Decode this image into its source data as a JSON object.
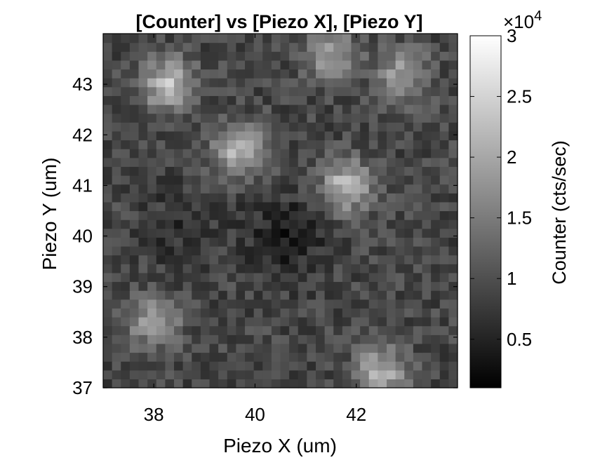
{
  "chart_data": {
    "type": "heatmap",
    "title": "[Counter] vs [Piezo X], [Piezo Y]",
    "xlabel": "Piezo X (um)",
    "ylabel": "Piezo Y (um)",
    "xlim": [
      37,
      44
    ],
    "ylim": [
      37,
      44
    ],
    "xticks": [
      38,
      40,
      42
    ],
    "yticks": [
      37,
      38,
      39,
      40,
      41,
      42,
      43
    ],
    "grid_size": 40,
    "colormap": "gray",
    "colorbar": {
      "label": "Counter (cts/sec)",
      "range": [
        1000,
        30000
      ],
      "ticks": [
        5000,
        10000,
        15000,
        20000,
        25000,
        30000
      ],
      "tick_labels": [
        "0.5",
        "1",
        "1.5",
        "2",
        "2.5",
        "3"
      ],
      "exponent_prefix": "×10",
      "exponent_power": "4"
    },
    "background_counts": 9000,
    "hotspots": [
      {
        "x": 38.3,
        "y": 43.0,
        "peak": 14000
      },
      {
        "x": 39.7,
        "y": 41.7,
        "peak": 13000
      },
      {
        "x": 41.8,
        "y": 41.0,
        "peak": 13000
      },
      {
        "x": 42.9,
        "y": 43.2,
        "peak": 10000
      },
      {
        "x": 41.5,
        "y": 43.6,
        "peak": 10000
      },
      {
        "x": 38.0,
        "y": 38.3,
        "peak": 10000
      },
      {
        "x": 42.5,
        "y": 37.3,
        "peak": 12000
      }
    ],
    "lowspots": [
      {
        "x": 40.6,
        "y": 40.0,
        "depth": 5000
      },
      {
        "x": 38.5,
        "y": 40.2,
        "depth": 2500
      }
    ]
  }
}
